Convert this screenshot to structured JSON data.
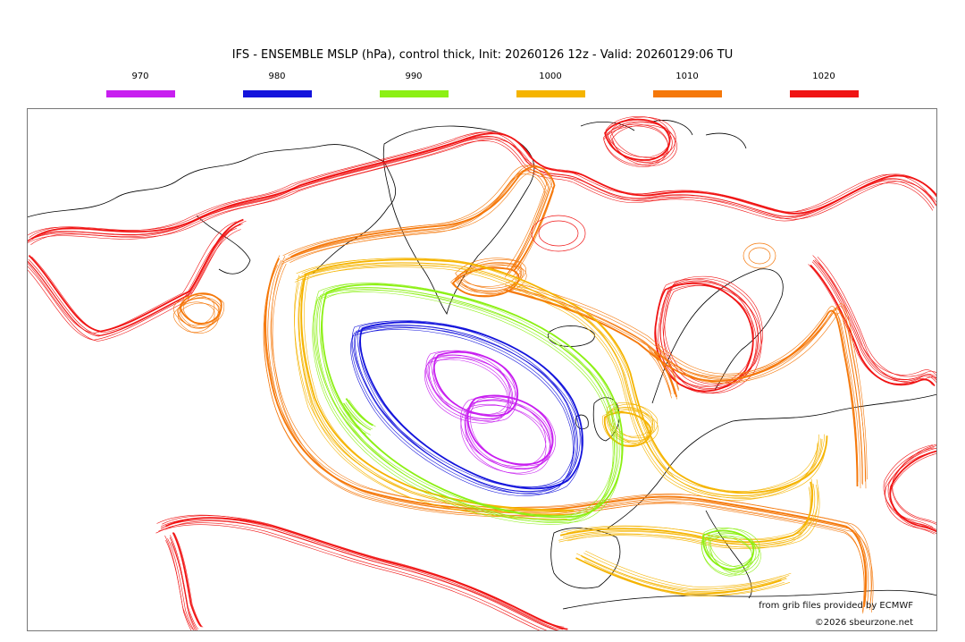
{
  "title": "IFS - ENSEMBLE MSLP (hPa), control thick, Init: 20260126 12z - Valid: 20260129:06 TU",
  "legend": [
    {
      "label": "970",
      "color": "#c81ef0"
    },
    {
      "label": "980",
      "color": "#1414dc"
    },
    {
      "label": "990",
      "color": "#8cf014"
    },
    {
      "label": "1000",
      "color": "#f5b400"
    },
    {
      "label": "1010",
      "color": "#f5780a"
    },
    {
      "label": "1020",
      "color": "#f01414"
    }
  ],
  "credits": {
    "source": "from grib files provided by ECMWF",
    "copyright": "©2026 sbeurzone.net"
  }
}
